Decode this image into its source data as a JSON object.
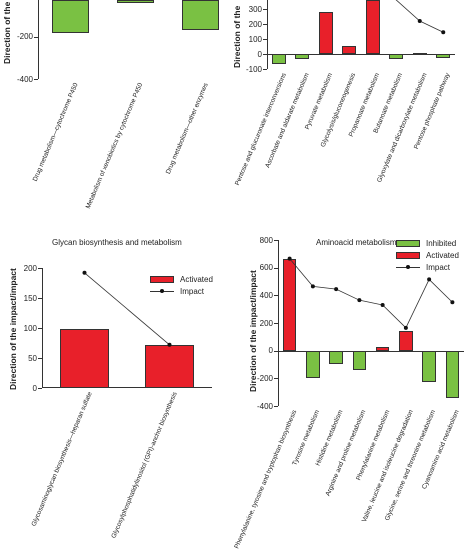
{
  "chart_data": [
    {
      "type": "bar",
      "title": "",
      "ylabel": "Direction of the",
      "ylim": [
        -400,
        0
      ],
      "yticks": [
        "0",
        "-200",
        "-400"
      ],
      "categories": [
        "Drug metabolism—cytochrome P450",
        "Metabolism of xenobiotics by cytochrome P450",
        "Drug metabolism—other enzymes"
      ],
      "series": [
        {
          "name": "Inhibited",
          "color": "#7ac143",
          "values": [
            -185,
            -40,
            -170
          ]
        }
      ]
    },
    {
      "type": "bar",
      "title": "",
      "ylabel": "Direction of the",
      "ylim": [
        -100,
        400
      ],
      "yticks": [
        "300",
        "200",
        "100",
        "0",
        "-100"
      ],
      "categories": [
        "Pentose and glucuronate interconversions",
        "Ascorbate and aldarate metabolism",
        "Pyruvate metabolism",
        "Glycolysis/gluconeogenesis",
        "Propanoate metabolism",
        "Butanoate metabolism",
        "Glyoxylate and dicarboxylate metabolism",
        "Pentose phosphate pathway"
      ],
      "series": [
        {
          "name": "Inhibited",
          "color": "#7ac143",
          "values": [
            -65,
            -30,
            0,
            0,
            0,
            -35,
            0,
            -25
          ]
        },
        {
          "name": "Activated",
          "color": "#e8202a",
          "values": [
            0,
            0,
            280,
            55,
            390,
            0,
            8,
            0
          ]
        }
      ],
      "impact": {
        "name": "Impact",
        "points": [
          {
            "category": "Propanoate metabolism",
            "value": 330
          },
          {
            "category": "Glyoxylate and dicarboxylate metabolism",
            "value": 220
          },
          {
            "category": "Pentose phosphate pathway",
            "value": 145
          }
        ]
      }
    },
    {
      "type": "bar",
      "title": "Glycan biosynthesis and metabolism",
      "ylabel": "Direction of the impact/impact",
      "ylim": [
        0,
        200
      ],
      "yticks": [
        "200",
        "150",
        "100",
        "50",
        "0"
      ],
      "categories": [
        "Glycosaminoglycan biosynthesis—heparan sulfate",
        "Glycosylphosphatidylinositol (GPI)-anchor biosynthesis"
      ],
      "series": [
        {
          "name": "Activated",
          "color": "#e8202a",
          "values": [
            98,
            72
          ]
        }
      ],
      "impact": {
        "name": "Impact",
        "points": [
          {
            "category": "Glycosaminoglycan biosynthesis—heparan sulfate",
            "value": 192
          },
          {
            "category": "Glycosylphosphatidylinositol (GPI)-anchor biosynthesis",
            "value": 72
          }
        ]
      },
      "legend": [
        "Activated",
        "Impact"
      ]
    },
    {
      "type": "bar",
      "title": "Aminoacid metabolism",
      "ylabel": "Direction of the impact/impact",
      "ylim": [
        -400,
        800
      ],
      "yticks": [
        "800",
        "600",
        "400",
        "200",
        "0",
        "-200",
        "-400"
      ],
      "categories": [
        "Phenylalanine, tyrosine and tryptophan biosynthesis",
        "Tyrosine metabolism",
        "Histidine metabolism",
        "Arginine and proline metabolism",
        "Phenylalanine metabolism",
        "Valine, leucine and isoleucine degradation",
        "Glycine, serine and threonine metabolism",
        "Cyanoamino acid metabolism"
      ],
      "series": [
        {
          "name": "Inhibited",
          "color": "#7ac143",
          "values": [
            0,
            -200,
            -95,
            -140,
            0,
            0,
            -225,
            -340
          ]
        },
        {
          "name": "Activated",
          "color": "#e8202a",
          "values": [
            665,
            0,
            0,
            0,
            30,
            145,
            0,
            0
          ]
        }
      ],
      "impact": {
        "name": "Impact",
        "points": [
          665,
          465,
          445,
          365,
          330,
          165,
          515,
          350
        ]
      },
      "legend": [
        "Inhibited",
        "Activated",
        "Impact"
      ]
    }
  ],
  "panel_labels": {
    "p1_categories": [
      "Drug metabolism—cytochrome P450",
      "Metabolism of xenobiotics by cytochrome P450",
      "Drug metabolism—other enzymes"
    ],
    "p2_categories": [
      "Pentose and glucuronate interconversions",
      "Ascorbate and aldarate metabolism",
      "Pyruvate metabolism",
      "Glycolysis/gluconeogenesis",
      "Propanoate metabolism",
      "Butanoate metabolism",
      "Glyoxylate and dicarboxylate metabolism",
      "Pentose phosphate pathway"
    ],
    "p3_categories": [
      "Glycosaminoglycan biosynthesis—heparan sulfate",
      "Glycosylphosphatidylinositol (GPI)-anchor biosynthesis"
    ],
    "p4_categories": [
      "Phenylalanine, tyrosine and tryptophan biosynthesis",
      "Tyrosine metabolism",
      "Histidine metabolism",
      "Arginine and proline metabolism",
      "Phenylalanine metabolism",
      "Valine, leucine and isoleucine degradation",
      "Glycine, serine and threonine metabolism",
      "Cyanoamino acid metabolism"
    ]
  },
  "colors": {
    "inhibited": "#7ac143",
    "activated": "#e8202a",
    "axis": "#333333"
  }
}
